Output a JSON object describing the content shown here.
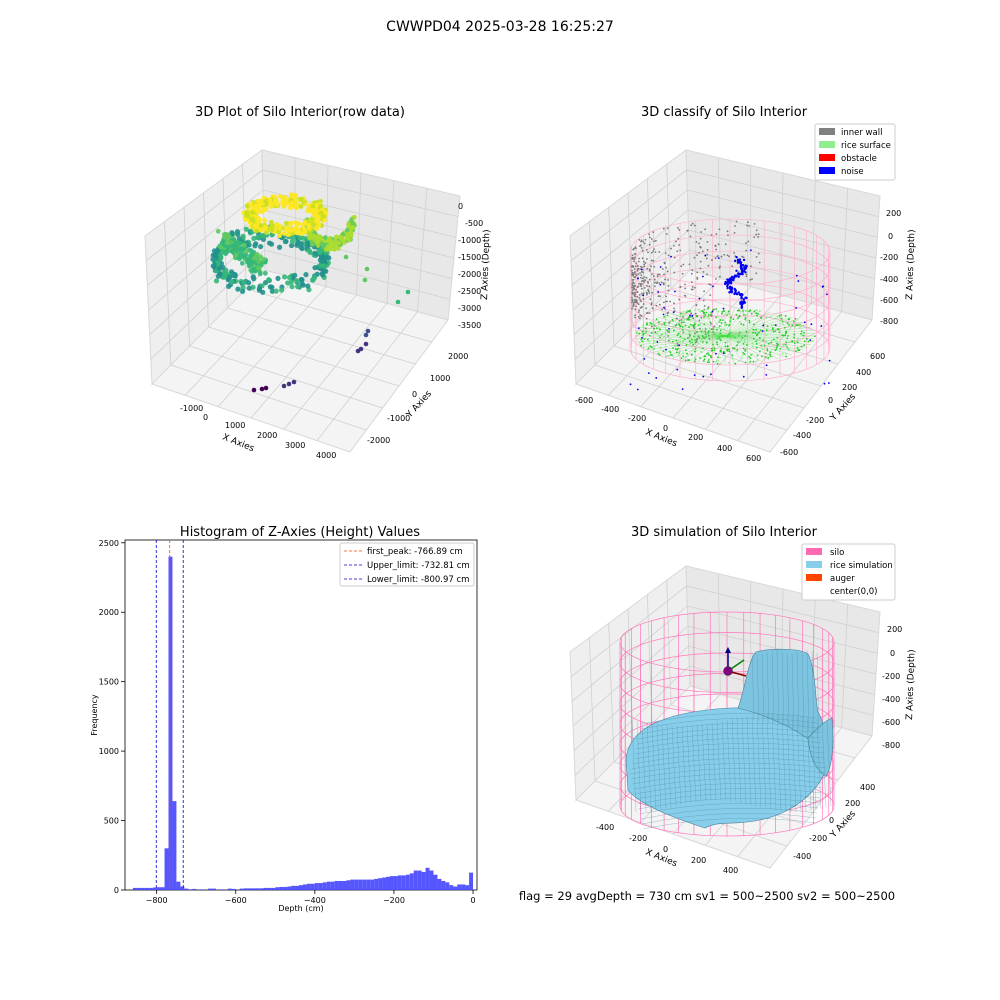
{
  "suptitle": "CWWPD04 2025-03-28 16:25:27",
  "footer": "flag = 29  avgDepth = 730 cm  sv1 = 500~2500  sv2 = 500~2500",
  "colors": {
    "grid": "#cccccc",
    "pane": "#f2f2f2",
    "hist_bar": "#4444ff",
    "peak_line": "#ff4500",
    "limit_line": "#0000cc"
  },
  "chart_data": [
    {
      "type": "scatter",
      "projection": "3d",
      "title": "3D Plot of Silo Interior(row data)",
      "xlabel": "X Axies",
      "ylabel": "Y Axies",
      "zlabel": "Z Axies (Depth)",
      "xticks": [
        "-1000",
        "0",
        "1000",
        "2000",
        "3000",
        "4000"
      ],
      "yticks": [
        "-2000",
        "-1000",
        "0",
        "1000",
        "2000"
      ],
      "zticks": [
        "0",
        "-500",
        "-1000",
        "-1500",
        "-2000",
        "-2500",
        "-3000",
        "-3500"
      ],
      "colormap": "viridis"
    },
    {
      "type": "scatter",
      "projection": "3d",
      "title": "3D classify of Silo Interior",
      "xlabel": "X Axies",
      "ylabel": "Y Axies",
      "zlabel": "Z Axies (Depth)",
      "xticks": [
        "-600",
        "-400",
        "-200",
        "0",
        "200",
        "400",
        "600"
      ],
      "yticks": [
        "-600",
        "-400",
        "-200",
        "0",
        "200",
        "400",
        "600"
      ],
      "zticks": [
        "200",
        "0",
        "-200",
        "-400",
        "-600",
        "-800"
      ],
      "legend": [
        {
          "label": "inner wall",
          "color": "#808080"
        },
        {
          "label": "rice surface",
          "color": "#90ee90"
        },
        {
          "label": "obstacle",
          "color": "#ff0000"
        },
        {
          "label": "noise",
          "color": "#0000ff"
        }
      ],
      "legend_loc": "top-right"
    },
    {
      "type": "bar",
      "title": "Histogram of Z-Axies (Height) Values",
      "xlabel": "Depth (cm)",
      "ylabel": "Frequency",
      "xlim": [
        -880,
        10
      ],
      "ylim": [
        0,
        2520
      ],
      "xticks": [
        -800,
        -600,
        -400,
        -200,
        0
      ],
      "yticks": [
        0,
        500,
        1000,
        1500,
        2000,
        2500
      ],
      "bin_width": 10,
      "bins": [
        [
          -860,
          15
        ],
        [
          -850,
          15
        ],
        [
          -840,
          15
        ],
        [
          -830,
          15
        ],
        [
          -820,
          15
        ],
        [
          -810,
          18
        ],
        [
          -800,
          20
        ],
        [
          -790,
          20
        ],
        [
          -780,
          300
        ],
        [
          -770,
          2400
        ],
        [
          -760,
          640
        ],
        [
          -750,
          60
        ],
        [
          -740,
          25
        ],
        [
          -730,
          10
        ],
        [
          -720,
          5
        ],
        [
          -710,
          8
        ],
        [
          -690,
          5
        ],
        [
          -670,
          10
        ],
        [
          -660,
          10
        ],
        [
          -640,
          5
        ],
        [
          -620,
          10
        ],
        [
          -610,
          8
        ],
        [
          -590,
          10
        ],
        [
          -580,
          12
        ],
        [
          -570,
          12
        ],
        [
          -560,
          12
        ],
        [
          -550,
          12
        ],
        [
          -540,
          12
        ],
        [
          -530,
          15
        ],
        [
          -520,
          15
        ],
        [
          -510,
          15
        ],
        [
          -500,
          20
        ],
        [
          -490,
          22
        ],
        [
          -480,
          22
        ],
        [
          -470,
          25
        ],
        [
          -460,
          30
        ],
        [
          -450,
          30
        ],
        [
          -440,
          35
        ],
        [
          -430,
          40
        ],
        [
          -420,
          45
        ],
        [
          -410,
          45
        ],
        [
          -400,
          50
        ],
        [
          -390,
          50
        ],
        [
          -380,
          55
        ],
        [
          -370,
          60
        ],
        [
          -360,
          60
        ],
        [
          -350,
          65
        ],
        [
          -340,
          65
        ],
        [
          -330,
          65
        ],
        [
          -320,
          70
        ],
        [
          -310,
          75
        ],
        [
          -300,
          75
        ],
        [
          -290,
          75
        ],
        [
          -280,
          75
        ],
        [
          -270,
          75
        ],
        [
          -260,
          75
        ],
        [
          -250,
          80
        ],
        [
          -240,
          85
        ],
        [
          -230,
          90
        ],
        [
          -220,
          95
        ],
        [
          -210,
          100
        ],
        [
          -200,
          100
        ],
        [
          -190,
          105
        ],
        [
          -180,
          105
        ],
        [
          -170,
          110
        ],
        [
          -160,
          120
        ],
        [
          -150,
          140
        ],
        [
          -140,
          140
        ],
        [
          -130,
          130
        ],
        [
          -120,
          160
        ],
        [
          -110,
          140
        ],
        [
          -100,
          110
        ],
        [
          -90,
          80
        ],
        [
          -80,
          65
        ],
        [
          -70,
          55
        ],
        [
          -60,
          35
        ],
        [
          -50,
          25
        ],
        [
          -40,
          40
        ],
        [
          -30,
          40
        ],
        [
          -20,
          35
        ],
        [
          -10,
          125
        ]
      ],
      "vlines": [
        {
          "x": -766.89,
          "label": "first_peak: -766.89 cm",
          "color": "#ff4500"
        },
        {
          "x": -732.81,
          "label": "Upper_limit: -732.81 cm",
          "color": "#0000cc"
        },
        {
          "x": -800.97,
          "label": "Lower_limit: -800.97 cm",
          "color": "#0000cc"
        }
      ],
      "legend_loc": "top-right"
    },
    {
      "type": "surface",
      "projection": "3d",
      "title": "3D simulation of Silo Interior",
      "xlabel": "X Axies",
      "ylabel": "Y Axies",
      "zlabel": "Z Axies (Depth)",
      "xticks": [
        "-400",
        "-200",
        "0",
        "200",
        "400"
      ],
      "yticks": [
        "-400",
        "-200",
        "0",
        "200",
        "400"
      ],
      "zticks": [
        "200",
        "0",
        "-200",
        "-400",
        "-600",
        "-800"
      ],
      "legend": [
        {
          "label": "silo",
          "color": "#ff69b4"
        },
        {
          "label": "rice simulation",
          "color": "#87ceeb"
        },
        {
          "label": "auger",
          "color": "#ff4500"
        },
        {
          "label": "center(0,0)",
          "color": ""
        }
      ],
      "legend_loc": "top-right"
    }
  ]
}
